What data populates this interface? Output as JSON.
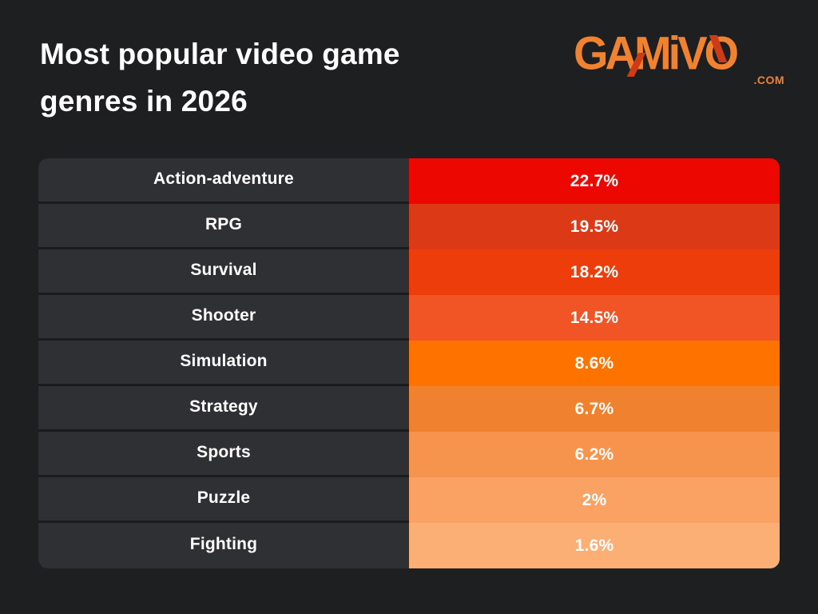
{
  "header": {
    "title_line1": "Most popular video game",
    "title_line2": "genres in 2026",
    "logo": {
      "text": "GAMiVO",
      "suffix": ".COM",
      "color": "#f08230",
      "accent_color": "#ce3b17"
    }
  },
  "chart_data": {
    "type": "bar",
    "title": "Most popular video game genres in 2026",
    "categories": [
      "Action-adventure",
      "RPG",
      "Survival",
      "Shooter",
      "Simulation",
      "Strategy",
      "Sports",
      "Puzzle",
      "Fighting"
    ],
    "values": [
      22.7,
      19.5,
      18.2,
      14.5,
      8.6,
      6.7,
      6.2,
      2,
      1.6
    ],
    "value_labels": [
      "22.7%",
      "19.5%",
      "18.2%",
      "14.5%",
      "8.6%",
      "6.7%",
      "6.2%",
      "2%",
      "1.6%"
    ],
    "bar_colors": [
      "#ec0800",
      "#dc3916",
      "#ed3d0b",
      "#f15425",
      "#fe7300",
      "#f0812f",
      "#f6934c",
      "#f9a263",
      "#fcaf75"
    ],
    "label_column_bg": "#2f3033",
    "text_color": "#ffffff",
    "background": "#1e1f21",
    "legend": "none",
    "grid": "off",
    "xlabel": "",
    "ylabel": "",
    "ylim": [
      0,
      25
    ]
  }
}
